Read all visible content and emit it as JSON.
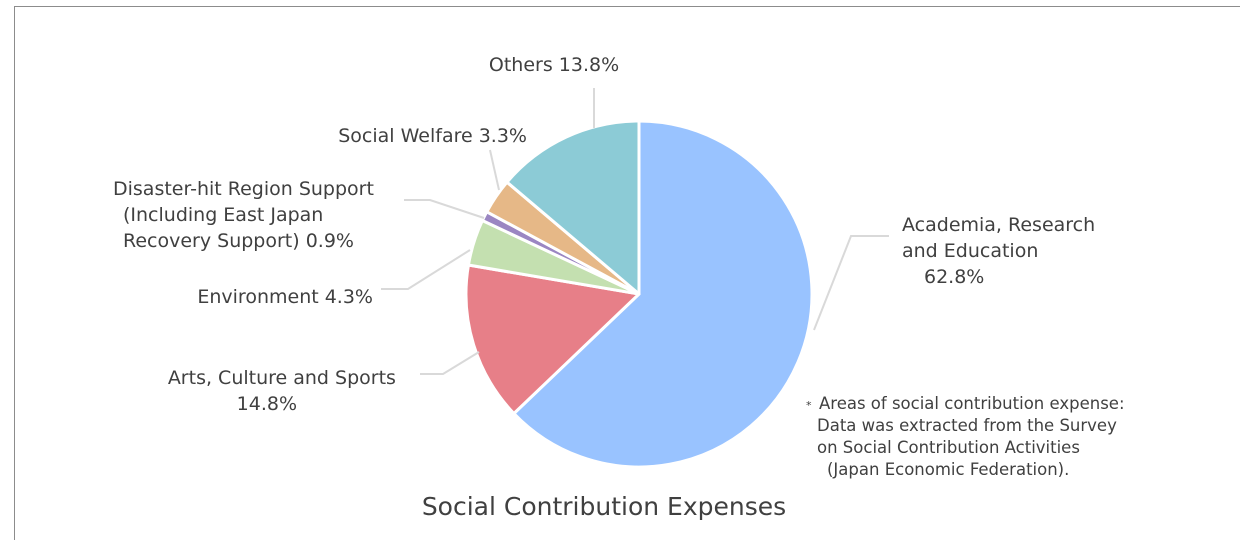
{
  "chart_data": {
    "type": "pie",
    "title": "Social Contribution Expenses",
    "slices": [
      {
        "label_lines": [
          "Academia, Research",
          "and Education",
          "62.8%"
        ],
        "value": 62.8,
        "color": "#99c3ff"
      },
      {
        "label_lines": [
          "Arts, Culture and Sports",
          "14.8%"
        ],
        "value": 14.8,
        "color": "#e77f88"
      },
      {
        "label_lines": [
          "Environment 4.3%"
        ],
        "value": 4.3,
        "color": "#c4e0b0"
      },
      {
        "label_lines": [
          "Disaster-hit Region Support",
          "(Including East Japan",
          "Recovery Support) 0.9%"
        ],
        "value": 0.9,
        "color": "#9b86c2"
      },
      {
        "label_lines": [
          "Social Welfare 3.3%"
        ],
        "value": 3.3,
        "color": "#e6b887"
      },
      {
        "label_lines": [
          "Others 13.8%"
        ],
        "value": 13.8,
        "color": "#8ccbd6"
      }
    ],
    "note_marker": "*",
    "note_lines": [
      "Areas of social contribution expense:",
      "Data was extracted from the Survey",
      "on Social Contribution Activities",
      "(Japan Economic Federation)."
    ]
  }
}
